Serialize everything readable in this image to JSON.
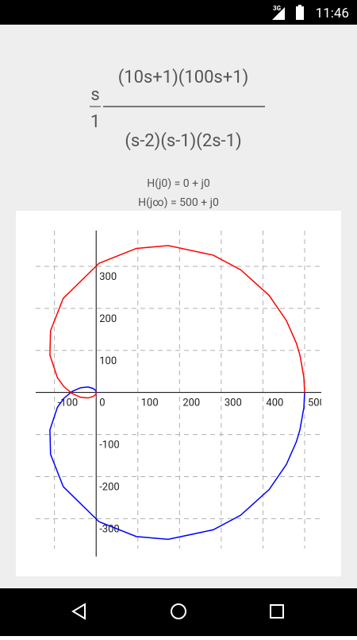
{
  "status_bar": {
    "network": "3G",
    "time": "11:46"
  },
  "formula": {
    "gain_numerator": "s",
    "gain_denominator": "1",
    "numerator": "(10s+1)(100s+1)",
    "denominator": "(s-2)(s-1)(2s-1)"
  },
  "info": [
    "H(j0) = 0 + j0",
    "H(j∞) = 500 + j0"
  ],
  "chart_data": {
    "type": "line",
    "xlim": [
      -145,
      540
    ],
    "ylim": [
      -390,
      385
    ],
    "xticks": [
      -100,
      0,
      100,
      200,
      300,
      400,
      500
    ],
    "yticks": [
      -300,
      -200,
      -100,
      100,
      200,
      300
    ],
    "grid": true,
    "series": [
      {
        "color": "#0000ff",
        "x": [
          0,
          0.13,
          0.36,
          -0.66,
          -6.77,
          -19.5,
          -37.4,
          -57.5,
          -76.7,
          -92.8,
          -110.9,
          -109.4,
          -79.0,
          6.7,
          96.3,
          172.7,
          280.8,
          346.6,
          415.0,
          456.4,
          480.1,
          488.7,
          498.2,
          500
        ],
        "values": [
          0,
          0.06,
          0.6,
          4.0,
          9.37,
          13.0,
          11.3,
          2.57,
          -13.3,
          -34.9,
          -88.9,
          -146.8,
          -223.8,
          -307.1,
          -342.5,
          -349.2,
          -326.5,
          -291.7,
          -230.6,
          -170.8,
          -117.4,
          -89.0,
          -36.0,
          0
        ]
      },
      {
        "color": "#ff0000",
        "x": [
          0,
          0.13,
          0.36,
          -0.66,
          -6.77,
          -19.5,
          -37.4,
          -57.5,
          -76.7,
          -92.8,
          -110.9,
          -109.4,
          -79.0,
          6.7,
          96.3,
          172.7,
          280.8,
          346.6,
          415.0,
          456.4,
          480.1,
          488.7,
          498.2,
          500
        ],
        "values": [
          0,
          -0.06,
          -0.6,
          -4.0,
          -9.37,
          -13.0,
          -11.3,
          -2.57,
          13.3,
          34.9,
          88.9,
          146.8,
          223.8,
          307.1,
          342.5,
          349.2,
          326.5,
          291.7,
          230.6,
          170.8,
          117.4,
          89.0,
          36.0,
          0
        ]
      }
    ]
  }
}
